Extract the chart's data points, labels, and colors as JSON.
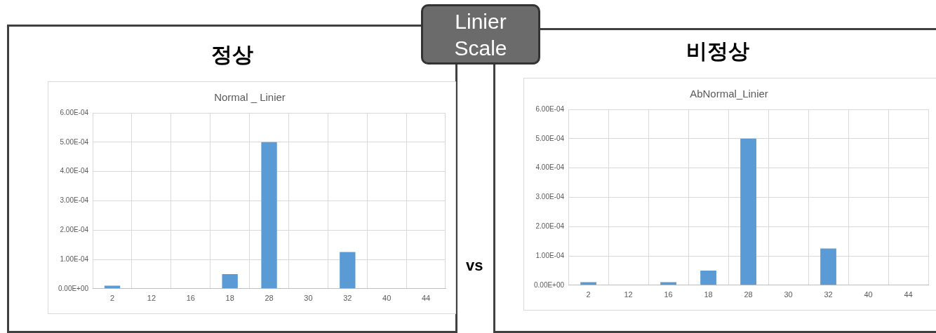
{
  "chart_data": [
    {
      "type": "bar",
      "title": "정상",
      "subtitle": "Normal _ Linier",
      "categories": [
        "2",
        "12",
        "16",
        "18",
        "28",
        "30",
        "32",
        "40",
        "44"
      ],
      "values": [
        1e-05,
        0,
        0,
        5e-05,
        0.0005,
        0,
        0.000125,
        0,
        0
      ],
      "color": "#5b9bd5",
      "ylim": [
        0,
        0.0006
      ],
      "yticks": [
        {
          "value": 0,
          "label": "0.00E+00"
        },
        {
          "value": 0.0001,
          "label": "1.00E-04"
        },
        {
          "value": 0.0002,
          "label": "2.00E-04"
        },
        {
          "value": 0.0003,
          "label": "3.00E-04"
        },
        {
          "value": 0.0004,
          "label": "4.00E-04"
        },
        {
          "value": 0.0005,
          "label": "5.00E-04"
        },
        {
          "value": 0.0006,
          "label": "6.00E-04"
        }
      ],
      "grid": true,
      "legend": false
    },
    {
      "type": "bar",
      "title": "비정상",
      "subtitle": "AbNormal_Linier",
      "categories": [
        "2",
        "12",
        "16",
        "18",
        "28",
        "30",
        "32",
        "40",
        "44"
      ],
      "values": [
        1e-05,
        0,
        1e-05,
        5e-05,
        0.0005,
        0,
        0.000125,
        0,
        0
      ],
      "color": "#5b9bd5",
      "ylim": [
        0,
        0.0006
      ],
      "yticks": [
        {
          "value": 0,
          "label": "0.00E+00"
        },
        {
          "value": 0.0001,
          "label": "1.00E-04"
        },
        {
          "value": 0.0002,
          "label": "2.00E-04"
        },
        {
          "value": 0.0003,
          "label": "3.00E-04"
        },
        {
          "value": 0.0004,
          "label": "4.00E-04"
        },
        {
          "value": 0.0005,
          "label": "5.00E-04"
        },
        {
          "value": 0.0006,
          "label": "6.00E-04"
        }
      ],
      "grid": true,
      "legend": false
    },
    {
      "type": "other",
      "annotations": [
        "Linier Scale",
        "vs"
      ]
    }
  ]
}
